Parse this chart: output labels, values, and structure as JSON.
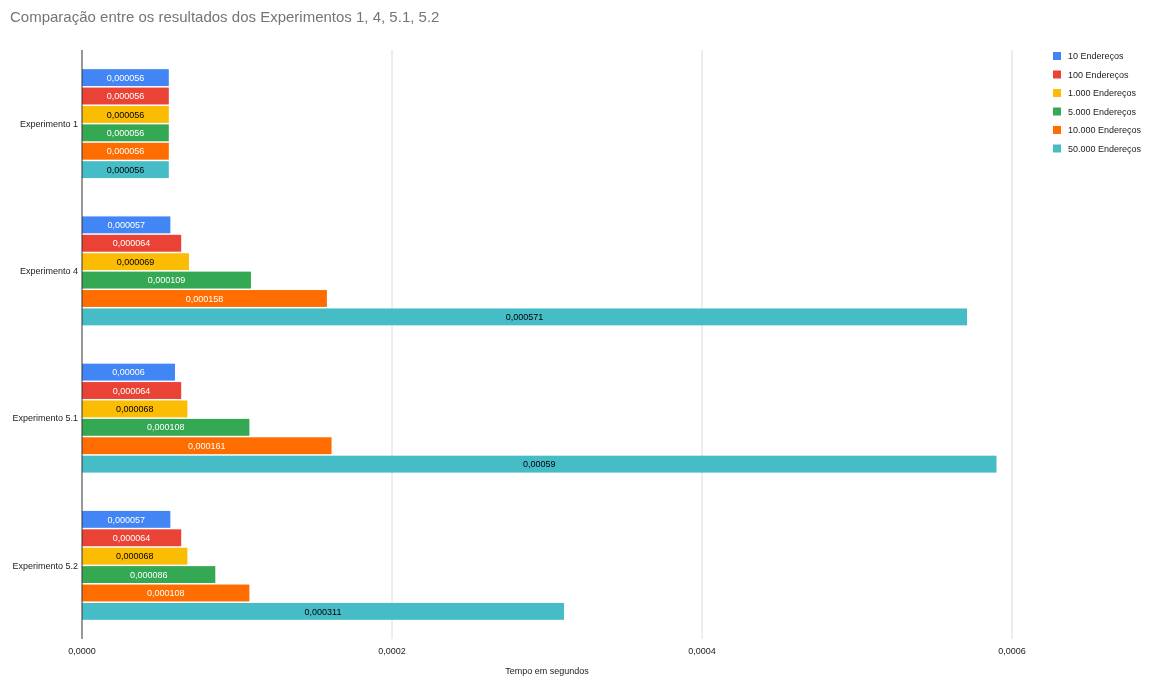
{
  "chart_data": {
    "type": "bar",
    "orientation": "horizontal",
    "title": "Comparação entre os resultados dos Experimentos 1, 4, 5.1, 5.2",
    "xlabel": "Tempo em segundos",
    "categories": [
      "Experimento 1",
      "Experimento 4",
      "Experimento 5.1",
      "Experimento 5.2"
    ],
    "series": [
      {
        "name": "10 Endereços",
        "color": "#4285f4",
        "values": [
          5.6e-05,
          5.7e-05,
          6e-05,
          5.7e-05
        ],
        "value_labels": [
          "0,000056",
          "0,000057",
          "0,00006",
          "0,000057"
        ]
      },
      {
        "name": "100 Endereços",
        "color": "#ea4335",
        "values": [
          5.6e-05,
          6.4e-05,
          6.4e-05,
          6.4e-05
        ],
        "value_labels": [
          "0,000056",
          "0,000064",
          "0,000064",
          "0,000064"
        ]
      },
      {
        "name": "1.000 Endereços",
        "color": "#fbbc04",
        "values": [
          5.6e-05,
          6.9e-05,
          6.8e-05,
          6.8e-05
        ],
        "value_labels": [
          "0,000056",
          "0,000069",
          "0,000068",
          "0,000068"
        ]
      },
      {
        "name": "5.000 Endereços",
        "color": "#34a853",
        "values": [
          5.6e-05,
          0.000109,
          0.000108,
          8.6e-05
        ],
        "value_labels": [
          "0,000056",
          "0,000109",
          "0,000108",
          "0,000086"
        ]
      },
      {
        "name": "10.000 Endereços",
        "color": "#ff6d01",
        "values": [
          5.6e-05,
          0.000158,
          0.000161,
          0.000108
        ],
        "value_labels": [
          "0,000056",
          "0,000158",
          "0,000161",
          "0,000108"
        ]
      },
      {
        "name": "50.000 Endereços",
        "color": "#46bdc6",
        "values": [
          5.6e-05,
          0.000571,
          0.00059,
          0.000311
        ],
        "value_labels": [
          "0,000056",
          "0,000571",
          "0,00059",
          "0,000311"
        ]
      }
    ],
    "xlim": [
      0,
      0.0006
    ],
    "xticks": [
      {
        "value": 0,
        "label": "0,0000"
      },
      {
        "value": 0.0002,
        "label": "0,0002"
      },
      {
        "value": 0.0004,
        "label": "0,0004"
      },
      {
        "value": 0.0006,
        "label": "0,0006"
      }
    ],
    "grid": "x",
    "legend": "top right"
  }
}
